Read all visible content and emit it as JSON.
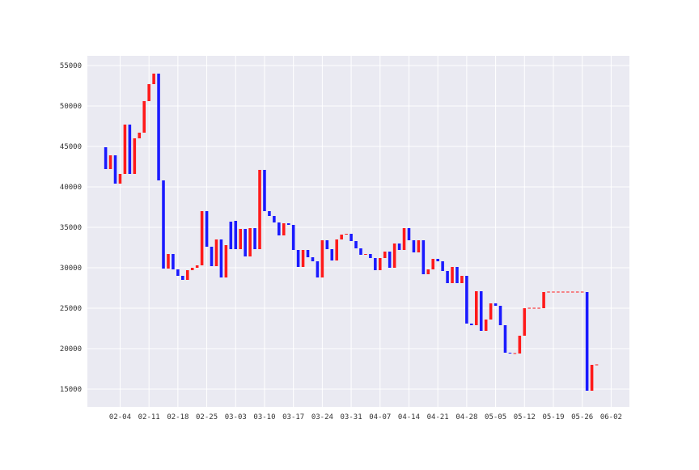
{
  "chart_data": {
    "type": "bar",
    "subtype": "candlestick-bodies",
    "title": "",
    "xlabel": "",
    "ylabel": "",
    "ylim": [
      12800,
      56200
    ],
    "y_ticks": [
      15000,
      20000,
      25000,
      30000,
      35000,
      40000,
      45000,
      50000,
      55000
    ],
    "y_tick_labels": [
      "15000",
      "20000",
      "25000",
      "30000",
      "35000",
      "40000",
      "45000",
      "50000",
      "55000"
    ],
    "x_ticks": [
      3,
      9,
      15,
      21,
      27,
      33,
      39,
      45,
      51,
      57,
      63,
      69,
      75,
      81,
      87,
      93,
      99,
      105
    ],
    "x_tick_labels": [
      "02-04",
      "02-11",
      "02-18",
      "02-25",
      "03-03",
      "03-10",
      "03-17",
      "03-24",
      "03-31",
      "04-07",
      "04-14",
      "04-21",
      "04-28",
      "05-05",
      "05-12",
      "05-19",
      "05-26",
      "06-02"
    ],
    "xlim": [
      -3.8,
      108.8
    ],
    "grid": true,
    "colors": {
      "up": "#ff1a1a",
      "down": "#1a1aff",
      "background": "#eaeaf2",
      "grid": "#ffffff"
    },
    "series": [
      {
        "open": [
          44900,
          42200,
          43900,
          40400,
          41600,
          47700,
          41600,
          46000,
          46700,
          50600,
          52700,
          54000,
          40800,
          29900,
          31700,
          29800,
          29000,
          28500,
          29700,
          30000,
          30300,
          37000,
          32600,
          30200,
          33500,
          28800,
          35700,
          35800,
          32300,
          34800,
          31400,
          34900,
          32300,
          42100,
          37000,
          36400,
          35600,
          34000,
          35500,
          35300,
          32200,
          30100,
          32200,
          31300,
          30800,
          28800,
          33400,
          32300,
          30900,
          33500,
          34100,
          34200,
          33300,
          32400,
          31600,
          31700,
          31200,
          29700,
          31200,
          32000,
          30000,
          33000,
          32200,
          34900,
          33400,
          31900,
          33400,
          29200,
          29800,
          31100,
          30800,
          29600,
          28100,
          30100,
          28100,
          29000,
          23100,
          22900,
          27100,
          22200,
          23600,
          25600,
          25300,
          22900,
          19500,
          19400,
          19400,
          21600,
          25000,
          25000,
          25000,
          25000,
          27000,
          27000,
          27000,
          27000,
          27000,
          27000,
          27000,
          27000,
          27000,
          14800,
          18000
        ],
        "close": [
          42200,
          43900,
          40400,
          41600,
          47700,
          41600,
          46000,
          46700,
          50600,
          52700,
          54000,
          40800,
          29900,
          31700,
          29800,
          29000,
          28500,
          29700,
          30000,
          30300,
          37000,
          32600,
          30200,
          33500,
          28800,
          32800,
          32300,
          32300,
          34800,
          31400,
          34900,
          32300,
          42100,
          37000,
          36400,
          35600,
          34000,
          35500,
          35300,
          32200,
          30100,
          32200,
          31300,
          30800,
          28800,
          33400,
          32300,
          30900,
          33500,
          34100,
          34200,
          33300,
          32400,
          31600,
          31700,
          31200,
          29700,
          31200,
          32000,
          30000,
          33000,
          32200,
          34900,
          33400,
          31900,
          33400,
          29200,
          29800,
          31100,
          30800,
          29600,
          28100,
          30100,
          28100,
          29000,
          23100,
          22900,
          27100,
          22200,
          23600,
          25600,
          25300,
          22900,
          19500,
          19400,
          19400,
          21600,
          25000,
          25000,
          25000,
          25000,
          27000,
          27000,
          27000,
          27000,
          27000,
          27000,
          27000,
          27000,
          27000,
          14800,
          18000,
          18000
        ]
      }
    ]
  }
}
